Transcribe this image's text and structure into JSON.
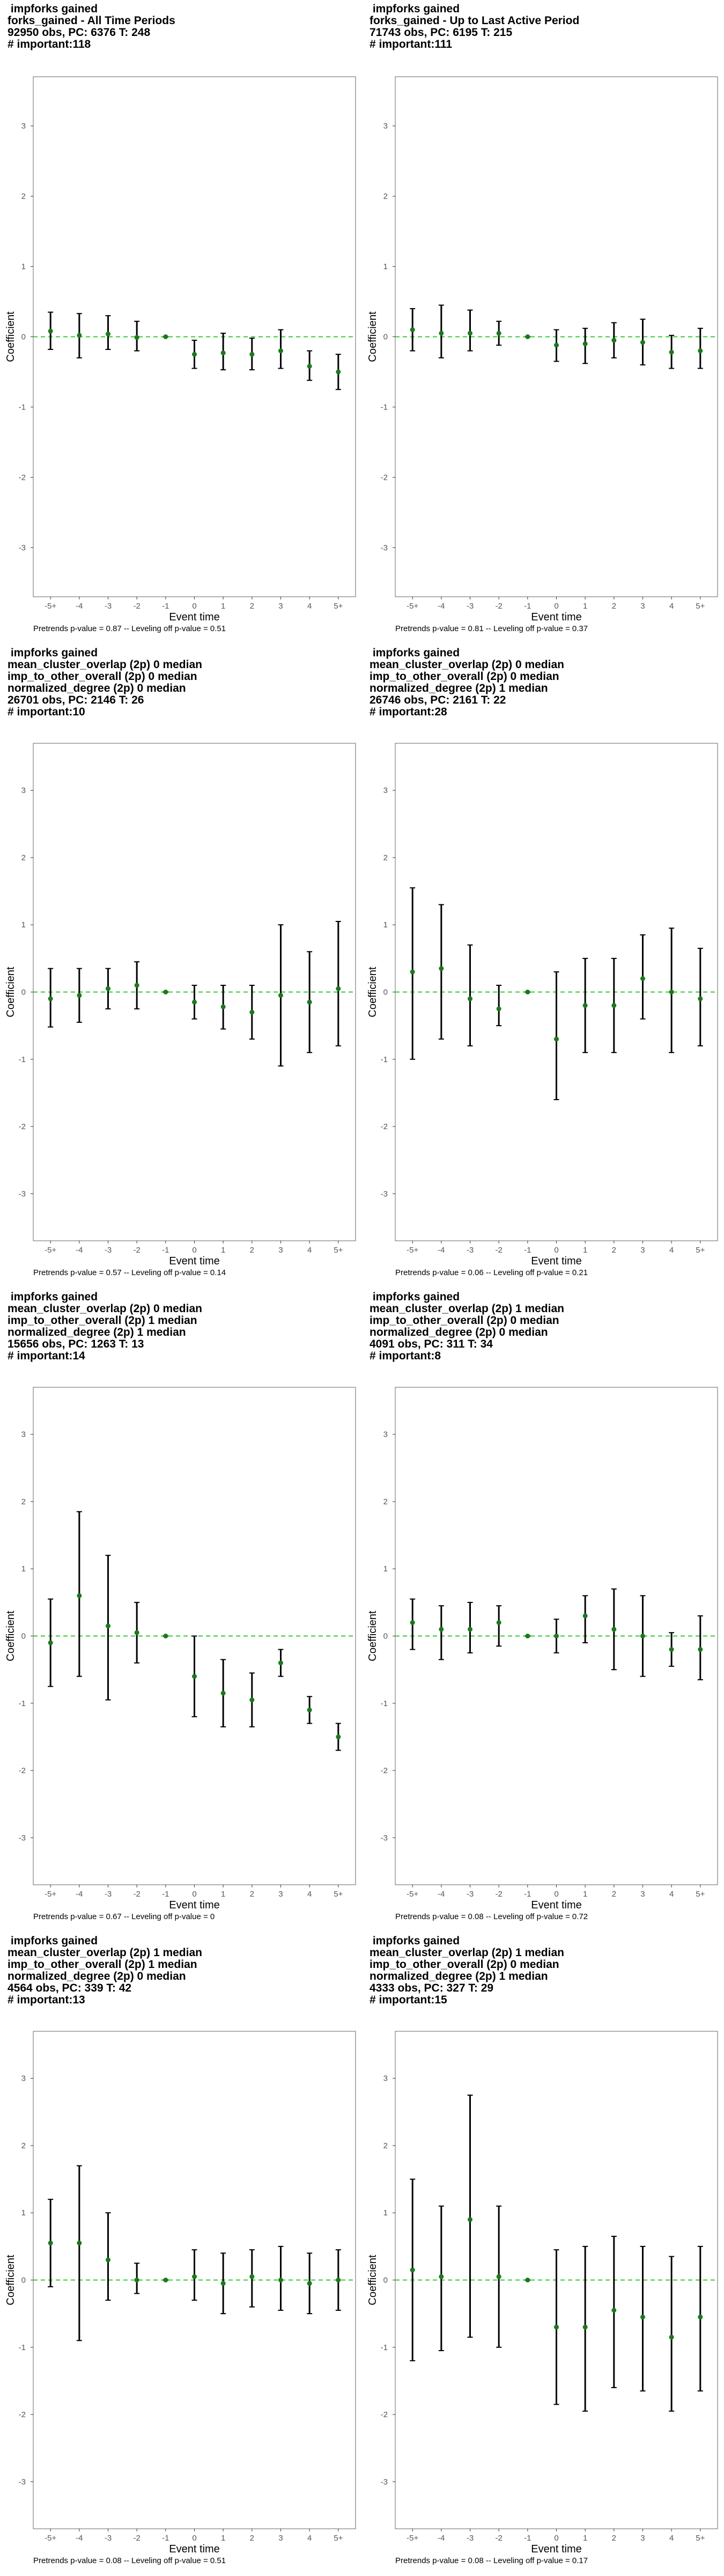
{
  "plot_defaults": {
    "xlabel": "Event time",
    "ylabel": "Coefficient",
    "ylim": [
      -3.7,
      3.7
    ],
    "yticks": [
      -3,
      -2,
      -1,
      0,
      1,
      2,
      3
    ],
    "reference_line": 0,
    "colors": {
      "point": "#1a7a1a",
      "zero_line": "#33cc33",
      "bar": "#000000",
      "frame": "#666666"
    }
  },
  "chart_data": [
    {
      "type": "scatter",
      "title_lines": [
        " impforks gained",
        "forks_gained - All Time Periods",
        "92950 obs, PC: 6376 T: 248",
        "# important:118"
      ],
      "footnote": "Pretrends p-value = 0.87 -- Leveling off p-value = 0.51",
      "categories": [
        "-5+",
        "-4",
        "-3",
        "-2",
        "-1",
        "0",
        "1",
        "2",
        "3",
        "4",
        "5+"
      ],
      "series": [
        {
          "estimate": [
            0.08,
            0.02,
            0.04,
            -0.01,
            0.0,
            -0.25,
            -0.23,
            -0.25,
            -0.2,
            -0.42,
            -0.5
          ]
        },
        {
          "lower": [
            -0.18,
            -0.3,
            -0.18,
            -0.2,
            0.0,
            -0.45,
            -0.47,
            -0.47,
            -0.45,
            -0.62,
            -0.75
          ]
        },
        {
          "upper": [
            0.35,
            0.33,
            0.3,
            0.22,
            0.0,
            -0.05,
            0.05,
            -0.02,
            0.1,
            -0.2,
            -0.25
          ]
        }
      ]
    },
    {
      "type": "scatter",
      "title_lines": [
        " impforks gained",
        "forks_gained - Up to Last Active Period",
        "71743 obs, PC: 6195 T: 215",
        "# important:111"
      ],
      "footnote": "Pretrends p-value = 0.81 -- Leveling off p-value = 0.37",
      "categories": [
        "-5+",
        "-4",
        "-3",
        "-2",
        "-1",
        "0",
        "1",
        "2",
        "3",
        "4",
        "5+"
      ],
      "series": [
        {
          "estimate": [
            0.1,
            0.05,
            0.05,
            0.05,
            0.0,
            -0.12,
            -0.1,
            -0.05,
            -0.08,
            -0.22,
            -0.2
          ]
        },
        {
          "lower": [
            -0.2,
            -0.3,
            -0.2,
            -0.12,
            0.0,
            -0.35,
            -0.38,
            -0.3,
            -0.4,
            -0.45,
            -0.45
          ]
        },
        {
          "upper": [
            0.4,
            0.45,
            0.38,
            0.22,
            0.0,
            0.1,
            0.12,
            0.2,
            0.25,
            0.02,
            0.12
          ]
        }
      ]
    },
    {
      "type": "scatter",
      "title_lines": [
        " impforks gained",
        "mean_cluster_overlap (2p) 0 median",
        "imp_to_other_overall (2p) 0 median",
        "normalized_degree (2p) 0 median",
        "26701 obs, PC: 2146 T: 26",
        "# important:10"
      ],
      "footnote": "Pretrends p-value = 0.57 -- Leveling off p-value = 0.14",
      "categories": [
        "-5+",
        "-4",
        "-3",
        "-2",
        "-1",
        "0",
        "1",
        "2",
        "3",
        "4",
        "5+"
      ],
      "series": [
        {
          "estimate": [
            -0.1,
            -0.05,
            0.05,
            0.1,
            0.0,
            -0.15,
            -0.22,
            -0.3,
            -0.05,
            -0.15,
            0.05
          ]
        },
        {
          "lower": [
            -0.52,
            -0.45,
            -0.25,
            -0.25,
            0.0,
            -0.4,
            -0.55,
            -0.7,
            -1.1,
            -0.9,
            -0.8
          ]
        },
        {
          "upper": [
            0.35,
            0.35,
            0.35,
            0.45,
            0.0,
            0.1,
            0.1,
            0.1,
            1.0,
            0.6,
            1.05
          ]
        }
      ]
    },
    {
      "type": "scatter",
      "title_lines": [
        " impforks gained",
        "mean_cluster_overlap (2p) 0 median",
        "imp_to_other_overall (2p) 0 median",
        "normalized_degree (2p) 1 median",
        "26746 obs, PC: 2161 T: 22",
        "# important:28"
      ],
      "footnote": "Pretrends p-value = 0.06 -- Leveling off p-value = 0.21",
      "categories": [
        "-5+",
        "-4",
        "-3",
        "-2",
        "-1",
        "0",
        "1",
        "2",
        "3",
        "4",
        "5+"
      ],
      "series": [
        {
          "estimate": [
            0.3,
            0.35,
            -0.1,
            -0.25,
            0.0,
            -0.7,
            -0.2,
            -0.2,
            0.2,
            0.0,
            -0.1
          ]
        },
        {
          "lower": [
            -1.0,
            -0.7,
            -0.8,
            -0.5,
            0.0,
            -1.6,
            -0.9,
            -0.9,
            -0.4,
            -0.9,
            -0.8
          ]
        },
        {
          "upper": [
            1.55,
            1.3,
            0.7,
            0.1,
            0.0,
            0.3,
            0.5,
            0.5,
            0.85,
            0.95,
            0.65
          ]
        }
      ]
    },
    {
      "type": "scatter",
      "title_lines": [
        " impforks gained",
        "mean_cluster_overlap (2p) 0 median",
        "imp_to_other_overall (2p) 1 median",
        "normalized_degree (2p) 1 median",
        "15656 obs, PC: 1263 T: 13",
        "# important:14"
      ],
      "footnote": "Pretrends p-value = 0.67 -- Leveling off p-value = 0",
      "categories": [
        "-5+",
        "-4",
        "-3",
        "-2",
        "-1",
        "0",
        "1",
        "2",
        "3",
        "4",
        "5+"
      ],
      "series": [
        {
          "estimate": [
            -0.1,
            0.6,
            0.15,
            0.05,
            0.0,
            -0.6,
            -0.85,
            -0.95,
            -0.4,
            -1.1,
            -1.5
          ]
        },
        {
          "lower": [
            -0.75,
            -0.6,
            -0.95,
            -0.4,
            0.0,
            -1.2,
            -1.35,
            -1.35,
            -0.6,
            -1.3,
            -1.7
          ]
        },
        {
          "upper": [
            0.55,
            1.85,
            1.2,
            0.5,
            0.0,
            0.0,
            -0.35,
            -0.55,
            -0.2,
            -0.9,
            -1.3
          ]
        }
      ]
    },
    {
      "type": "scatter",
      "title_lines": [
        " impforks gained",
        "mean_cluster_overlap (2p) 1 median",
        "imp_to_other_overall (2p) 0 median",
        "normalized_degree (2p) 0 median",
        "4091 obs, PC: 311 T: 34",
        "# important:8"
      ],
      "footnote": "Pretrends p-value = 0.08 -- Leveling off p-value = 0.72",
      "categories": [
        "-5+",
        "-4",
        "-3",
        "-2",
        "-1",
        "0",
        "1",
        "2",
        "3",
        "4",
        "5+"
      ],
      "series": [
        {
          "estimate": [
            0.2,
            0.1,
            0.1,
            0.2,
            0.0,
            0.0,
            0.3,
            0.1,
            0.0,
            -0.2,
            -0.2
          ]
        },
        {
          "lower": [
            -0.2,
            -0.35,
            -0.25,
            -0.15,
            0.0,
            -0.25,
            -0.1,
            -0.5,
            -0.6,
            -0.45,
            -0.65
          ]
        },
        {
          "upper": [
            0.55,
            0.45,
            0.5,
            0.45,
            0.0,
            0.25,
            0.6,
            0.7,
            0.6,
            0.05,
            0.3
          ]
        }
      ]
    },
    {
      "type": "scatter",
      "title_lines": [
        " impforks gained",
        "mean_cluster_overlap (2p) 1 median",
        "imp_to_other_overall (2p) 1 median",
        "normalized_degree (2p) 0 median",
        "4564 obs, PC: 339 T: 42",
        "# important:13"
      ],
      "footnote": "Pretrends p-value = 0.08 -- Leveling off p-value = 0.51",
      "categories": [
        "-5+",
        "-4",
        "-3",
        "-2",
        "-1",
        "0",
        "1",
        "2",
        "3",
        "4",
        "5+"
      ],
      "series": [
        {
          "estimate": [
            0.55,
            0.55,
            0.3,
            0.0,
            0.0,
            0.05,
            -0.05,
            0.05,
            0.0,
            -0.05,
            0.0
          ]
        },
        {
          "lower": [
            -0.1,
            -0.9,
            -0.3,
            -0.2,
            0.0,
            -0.3,
            -0.5,
            -0.4,
            -0.45,
            -0.5,
            -0.45
          ]
        },
        {
          "upper": [
            1.2,
            1.7,
            1.0,
            0.25,
            0.0,
            0.45,
            0.4,
            0.45,
            0.5,
            0.4,
            0.45
          ]
        }
      ]
    },
    {
      "type": "scatter",
      "title_lines": [
        " impforks gained",
        "mean_cluster_overlap (2p) 1 median",
        "imp_to_other_overall (2p) 0 median",
        "normalized_degree (2p) 1 median",
        "4333 obs, PC: 327 T: 29",
        "# important:15"
      ],
      "footnote": "Pretrends p-value = 0.08 -- Leveling off p-value = 0.17",
      "categories": [
        "-5+",
        "-4",
        "-3",
        "-2",
        "-1",
        "0",
        "1",
        "2",
        "3",
        "4",
        "5+"
      ],
      "series": [
        {
          "estimate": [
            0.15,
            0.05,
            0.9,
            0.05,
            0.0,
            -0.7,
            -0.7,
            -0.45,
            -0.55,
            -0.85,
            -0.55
          ]
        },
        {
          "lower": [
            -1.2,
            -1.05,
            -0.85,
            -1.0,
            0.0,
            -1.85,
            -1.95,
            -1.6,
            -1.65,
            -1.95,
            -1.65
          ]
        },
        {
          "upper": [
            1.5,
            1.1,
            2.75,
            1.1,
            0.0,
            0.45,
            0.5,
            0.65,
            0.5,
            0.35,
            0.5
          ]
        }
      ]
    }
  ]
}
